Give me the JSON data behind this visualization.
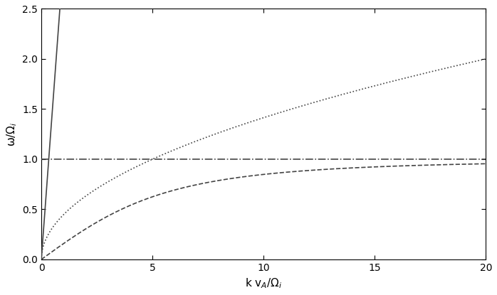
{
  "xlim": [
    0,
    20
  ],
  "ylim": [
    0,
    2.5
  ],
  "xlabel": "k v$_A$/\\Omega$_i$",
  "ylabel": "\\omega/\\Omega$_i$",
  "xticks": [
    0,
    5,
    10,
    15,
    20
  ],
  "yticks": [
    0.0,
    0.5,
    1.0,
    1.5,
    2.0,
    2.5
  ],
  "line_color": "#444444",
  "background_color": "#ffffff",
  "figsize": [
    6.98,
    4.15
  ],
  "dpi": 100,
  "xlabel_fontsize": 11,
  "ylabel_fontsize": 11,
  "tick_fontsize": 10,
  "line_width": 1.2,
  "solid_slope": 3.0,
  "dotted_scale": 5.0,
  "dashed_C": 39.0
}
